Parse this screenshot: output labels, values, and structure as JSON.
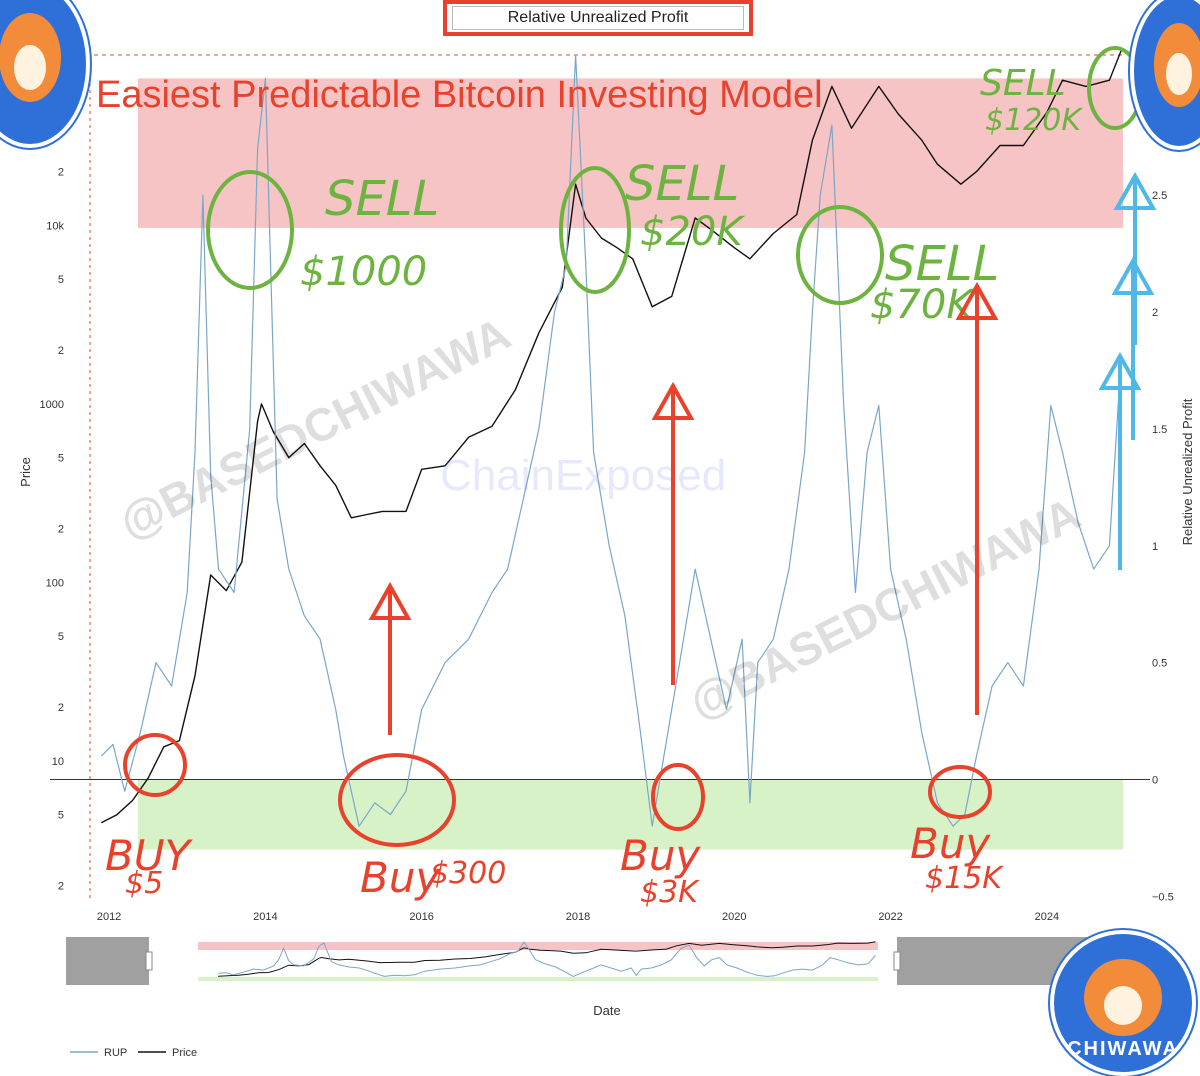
{
  "header": {
    "chart_title": "Relative Unrealized Profit"
  },
  "headline": "Easiest Predictable Bitcoin Investing Model",
  "watermarks": [
    "@BASEDCHIWAWA",
    "ChainExposed",
    "@BASEDCHIWAWA"
  ],
  "logo_text": "CHIWAWA",
  "annotations": {
    "sell": [
      {
        "label": "SELL",
        "price": "$1000"
      },
      {
        "label": "SELL",
        "price": "$20K"
      },
      {
        "label": "SELL",
        "price": "$70K"
      },
      {
        "label": "SELL",
        "price": "$120K"
      }
    ],
    "buy": [
      {
        "label": "BUY",
        "price": "$5"
      },
      {
        "label": "Buy",
        "price": "$300"
      },
      {
        "label": "Buy",
        "price": "$3K"
      },
      {
        "label": "Buy",
        "price": "$15K"
      }
    ]
  },
  "colors": {
    "rup": "#7aa6c9",
    "price": "#111111",
    "sell_zone": "#f6c4c4",
    "buy_zone": "#d8f2c8",
    "annotation_red": "#e8412c",
    "annotation_green": "#6cb33f",
    "annotation_blue": "#4fb8e8"
  },
  "chart_data": {
    "type": "line",
    "title": "Relative Unrealized Profit",
    "xlabel": "Date",
    "ylabel_left": "Price",
    "ylabel_right": "Relative Unrealized Profit",
    "x_ticks": [
      "2012",
      "2014",
      "2016",
      "2018",
      "2020",
      "2022",
      "2024"
    ],
    "x_range": [
      2011.5,
      2025.0
    ],
    "y_left_scale": "log",
    "y_left_ticks": [
      "2",
      "5",
      "10",
      "2",
      "5",
      "100",
      "2",
      "5",
      "1000",
      "2",
      "5",
      "10k",
      "2",
      "5"
    ],
    "y_left_range": [
      1.5,
      90000
    ],
    "y_right_ticks": [
      "-0.5",
      "0",
      "0.5",
      "1",
      "1.5",
      "2",
      "2.5",
      "3"
    ],
    "y_right_range": [
      -0.55,
      3.1
    ],
    "sell_zone_rup": [
      2.36,
      3.0
    ],
    "buy_zone_rup": [
      -0.3,
      0
    ],
    "legend": [
      "RUP",
      "Price"
    ],
    "legend_position": "bottom-left",
    "series": [
      {
        "name": "Price",
        "axis": "left",
        "x": [
          2011.9,
          2012.1,
          2012.3,
          2012.5,
          2012.7,
          2012.9,
          2013.1,
          2013.3,
          2013.5,
          2013.7,
          2013.9,
          2013.95,
          2014.1,
          2014.3,
          2014.5,
          2014.7,
          2014.9,
          2015.1,
          2015.3,
          2015.5,
          2015.8,
          2016.0,
          2016.3,
          2016.6,
          2016.9,
          2017.2,
          2017.5,
          2017.8,
          2017.97,
          2018.1,
          2018.3,
          2018.5,
          2018.7,
          2018.95,
          2019.2,
          2019.5,
          2019.7,
          2020.0,
          2020.2,
          2020.5,
          2020.8,
          2021.0,
          2021.25,
          2021.5,
          2021.85,
          2022.1,
          2022.4,
          2022.6,
          2022.9,
          2023.1,
          2023.4,
          2023.7,
          2024.0,
          2024.2,
          2024.5,
          2024.8,
          2024.95
        ],
        "y": [
          4.5,
          5,
          6,
          8,
          12,
          13,
          30,
          110,
          90,
          130,
          800,
          1000,
          700,
          500,
          600,
          450,
          350,
          230,
          240,
          250,
          250,
          430,
          450,
          650,
          750,
          1200,
          2500,
          4500,
          17000,
          11000,
          8500,
          7500,
          6500,
          3500,
          4000,
          11000,
          9500,
          7500,
          6500,
          9000,
          11500,
          30000,
          60000,
          35000,
          60000,
          42000,
          30000,
          22000,
          17000,
          20000,
          28000,
          28000,
          43000,
          65000,
          60000,
          65000,
          95000
        ]
      },
      {
        "name": "RUP",
        "axis": "right",
        "x": [
          2011.9,
          2012.05,
          2012.2,
          2012.4,
          2012.6,
          2012.8,
          2013.0,
          2013.1,
          2013.2,
          2013.3,
          2013.4,
          2013.6,
          2013.8,
          2013.9,
          2014.0,
          2014.15,
          2014.3,
          2014.5,
          2014.7,
          2014.9,
          2015.0,
          2015.2,
          2015.4,
          2015.6,
          2015.8,
          2016.0,
          2016.3,
          2016.6,
          2016.9,
          2017.1,
          2017.3,
          2017.5,
          2017.7,
          2017.85,
          2017.97,
          2018.1,
          2018.2,
          2018.4,
          2018.6,
          2018.8,
          2018.95,
          2019.1,
          2019.3,
          2019.5,
          2019.7,
          2019.9,
          2020.1,
          2020.2,
          2020.3,
          2020.5,
          2020.7,
          2020.9,
          2021.0,
          2021.1,
          2021.25,
          2021.4,
          2021.55,
          2021.7,
          2021.85,
          2022.0,
          2022.2,
          2022.4,
          2022.6,
          2022.8,
          2022.95,
          2023.1,
          2023.3,
          2023.5,
          2023.7,
          2023.9,
          2024.05,
          2024.2,
          2024.4,
          2024.6,
          2024.8,
          2024.95
        ],
        "y": [
          0.1,
          0.15,
          -0.05,
          0.2,
          0.5,
          0.4,
          0.8,
          1.4,
          2.5,
          1.3,
          0.9,
          0.8,
          1.5,
          2.7,
          3.0,
          1.2,
          0.9,
          0.7,
          0.6,
          0.3,
          0.1,
          -0.2,
          -0.1,
          -0.15,
          -0.05,
          0.3,
          0.5,
          0.6,
          0.8,
          0.9,
          1.2,
          1.5,
          2.0,
          2.2,
          3.1,
          2.2,
          1.4,
          1.0,
          0.7,
          0.2,
          -0.2,
          0.1,
          0.5,
          0.9,
          0.6,
          0.3,
          0.6,
          -0.1,
          0.5,
          0.6,
          0.9,
          1.4,
          2.0,
          2.5,
          2.8,
          1.6,
          0.8,
          1.4,
          1.6,
          0.9,
          0.6,
          0.2,
          -0.1,
          -0.2,
          -0.15,
          0.1,
          0.4,
          0.5,
          0.4,
          0.9,
          1.6,
          1.4,
          1.1,
          0.9,
          1.0,
          1.8
        ]
      }
    ]
  }
}
